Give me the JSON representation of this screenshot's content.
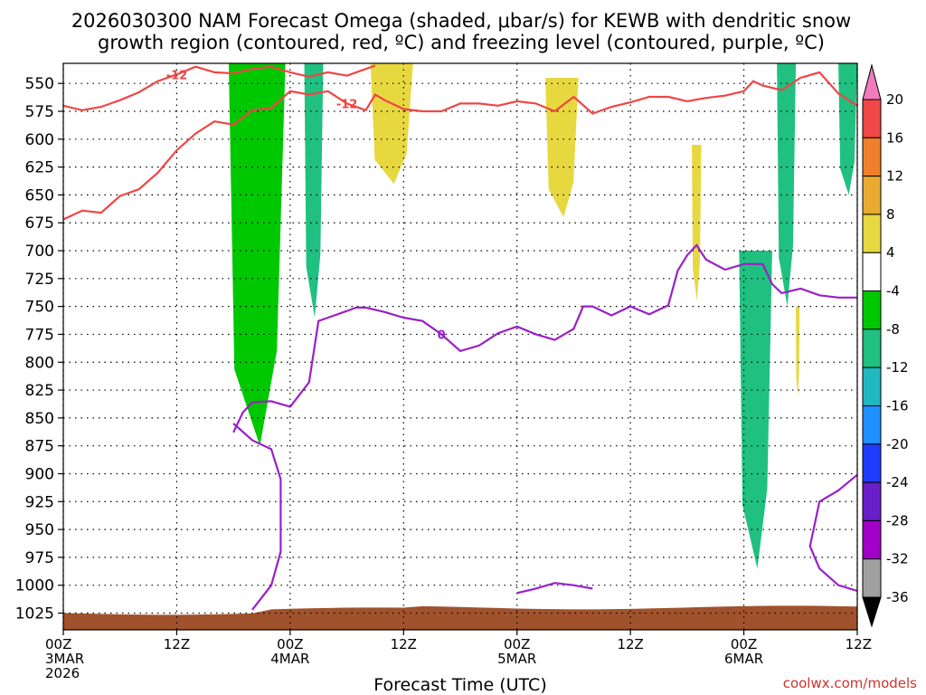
{
  "chart_data": {
    "type": "heatmap",
    "title_line1": "2026030300 NAM Forecast Omega (shaded, μbar/s) for KEWB with dendritic snow",
    "title_line2": "growth region (contoured, red, ºC) and freezing level (contoured, purple, ºC)",
    "xlabel": "Forecast Time (UTC)",
    "ylabel": "",
    "credit": "coolwx.com/models",
    "xlim_hours": [
      0,
      84
    ],
    "ylim_hpa": [
      1040,
      532
    ],
    "y_ticks": [
      550,
      575,
      600,
      625,
      650,
      675,
      700,
      725,
      750,
      775,
      800,
      825,
      850,
      875,
      900,
      925,
      950,
      975,
      1000,
      1025
    ],
    "x_ticks": [
      {
        "hour": 0,
        "line1": "00Z",
        "line2": "3MAR",
        "line3": "2026"
      },
      {
        "hour": 12,
        "line1": "12Z",
        "line2": "",
        "line3": ""
      },
      {
        "hour": 24,
        "line1": "00Z",
        "line2": "4MAR",
        "line3": ""
      },
      {
        "hour": 36,
        "line1": "12Z",
        "line2": "",
        "line3": ""
      },
      {
        "hour": 48,
        "line1": "00Z",
        "line2": "5MAR",
        "line3": ""
      },
      {
        "hour": 60,
        "line1": "12Z",
        "line2": "",
        "line3": ""
      },
      {
        "hour": 72,
        "line1": "00Z",
        "line2": "6MAR",
        "line3": ""
      },
      {
        "hour": 84,
        "line1": "12Z",
        "line2": "",
        "line3": ""
      }
    ],
    "colorbar": {
      "labels": [
        "20",
        "16",
        "12",
        "8",
        "4",
        "-4",
        "-8",
        "-12",
        "-16",
        "-20",
        "-24",
        "-28",
        "-32",
        "-36"
      ],
      "colors": [
        "#f07cbe",
        "#f04747",
        "#ef7f2a",
        "#e8aa30",
        "#e8d840",
        "#ffffff",
        "#00c800",
        "#20c080",
        "#20b8c0",
        "#1e90ff",
        "#1e3cff",
        "#6a1ec8",
        "#a000c8",
        "#a0a0a0"
      ]
    },
    "series": [
      {
        "name": "-12C isotherm (upper)",
        "color": "#f04545",
        "label": "-12",
        "points": [
          [
            0,
            570
          ],
          [
            2,
            574
          ],
          [
            4,
            571
          ],
          [
            6,
            565
          ],
          [
            8,
            558
          ],
          [
            10,
            548
          ],
          [
            12,
            542
          ],
          [
            14,
            535
          ],
          [
            16,
            540
          ],
          [
            18,
            541
          ],
          [
            20,
            537
          ],
          [
            22,
            535
          ],
          [
            24,
            540
          ],
          [
            26,
            544
          ],
          [
            28,
            540
          ],
          [
            30,
            543
          ],
          [
            32,
            537
          ],
          [
            33,
            534
          ]
        ]
      },
      {
        "name": "-12C isotherm (lower)",
        "color": "#f04545",
        "label": "-12",
        "points": [
          [
            0,
            672
          ],
          [
            2,
            664
          ],
          [
            4,
            666
          ],
          [
            6,
            651
          ],
          [
            8,
            645
          ],
          [
            10,
            630
          ],
          [
            12,
            610
          ],
          [
            14,
            595
          ],
          [
            16,
            584
          ],
          [
            18,
            587
          ],
          [
            20,
            574
          ],
          [
            22,
            572
          ],
          [
            24,
            557
          ],
          [
            26,
            560
          ],
          [
            28,
            557
          ],
          [
            30,
            568
          ],
          [
            32,
            574
          ],
          [
            33,
            560
          ],
          [
            34,
            565
          ],
          [
            36,
            573
          ],
          [
            38,
            575
          ],
          [
            40,
            575
          ],
          [
            42,
            568
          ],
          [
            44,
            568
          ],
          [
            46,
            570
          ],
          [
            48,
            566
          ],
          [
            50,
            568
          ],
          [
            52,
            575
          ],
          [
            54,
            562
          ],
          [
            56,
            577
          ],
          [
            58,
            571
          ],
          [
            60,
            567
          ],
          [
            62,
            562
          ],
          [
            64,
            562
          ],
          [
            66,
            566
          ],
          [
            68,
            563
          ],
          [
            70,
            561
          ],
          [
            72,
            557
          ],
          [
            73,
            548
          ],
          [
            74,
            552
          ],
          [
            76,
            556
          ],
          [
            78,
            545
          ],
          [
            80,
            540
          ],
          [
            82,
            559
          ],
          [
            84,
            570
          ]
        ]
      },
      {
        "name": "0C freezing level",
        "color": "#9a20c8",
        "label": "0",
        "points": [
          [
            18,
            863
          ],
          [
            19,
            845
          ],
          [
            20,
            836
          ],
          [
            22,
            835
          ],
          [
            24,
            840
          ],
          [
            26,
            818
          ],
          [
            27,
            763
          ],
          [
            28,
            760
          ],
          [
            30,
            754
          ],
          [
            31,
            751
          ],
          [
            32,
            751
          ],
          [
            34,
            755
          ],
          [
            36,
            760
          ],
          [
            38,
            763
          ],
          [
            40,
            775
          ],
          [
            42,
            790
          ],
          [
            44,
            785
          ],
          [
            46,
            774
          ],
          [
            48,
            768
          ],
          [
            50,
            775
          ],
          [
            52,
            780
          ],
          [
            54,
            770
          ],
          [
            55,
            750
          ],
          [
            56,
            750
          ],
          [
            58,
            758
          ],
          [
            60,
            750
          ],
          [
            62,
            757
          ],
          [
            64,
            749
          ],
          [
            65,
            718
          ],
          [
            66,
            704
          ],
          [
            67,
            695
          ],
          [
            68,
            708
          ],
          [
            70,
            717
          ],
          [
            72,
            712
          ],
          [
            74,
            712
          ],
          [
            75,
            730
          ],
          [
            76,
            738
          ],
          [
            78,
            734
          ],
          [
            80,
            740
          ],
          [
            82,
            742
          ],
          [
            84,
            742
          ]
        ]
      },
      {
        "name": "0C freezing level (lower branch)",
        "color": "#9a20c8",
        "label": "",
        "points": [
          [
            18,
            855
          ],
          [
            20,
            870
          ],
          [
            22,
            878
          ],
          [
            23,
            905
          ],
          [
            23,
            970
          ],
          [
            22,
            1000
          ],
          [
            20,
            1022
          ]
        ]
      },
      {
        "name": "0C freezing level (surface)",
        "color": "#9a20c8",
        "label": "",
        "points": [
          [
            48,
            1007
          ],
          [
            50,
            1003
          ],
          [
            52,
            998
          ],
          [
            54,
            1000
          ],
          [
            56,
            1003
          ]
        ]
      },
      {
        "name": "0C freezing level (east)",
        "color": "#9a20c8",
        "label": "",
        "points": [
          [
            84,
            901
          ],
          [
            82,
            915
          ],
          [
            80,
            925
          ],
          [
            79,
            965
          ],
          [
            80,
            985
          ],
          [
            82,
            1000
          ],
          [
            84,
            1005
          ]
        ]
      }
    ],
    "omega_regions": [
      {
        "name": "ascent-1",
        "value": -6,
        "hours": [
          17.5,
          23.5
        ],
        "top_hpa": 532,
        "bottom_hpa": 875
      },
      {
        "name": "ascent-2",
        "value": -8,
        "hours": [
          25.5,
          27.5
        ],
        "top_hpa": 532,
        "bottom_hpa": 760
      },
      {
        "name": "ascent-3",
        "value": -8,
        "hours": [
          71.5,
          75
        ],
        "top_hpa": 700,
        "bottom_hpa": 985
      },
      {
        "name": "ascent-4",
        "value": -10,
        "hours": [
          75.5,
          77.5
        ],
        "top_hpa": 532,
        "bottom_hpa": 750
      },
      {
        "name": "ascent-5",
        "value": -8,
        "hours": [
          82,
          84
        ],
        "top_hpa": 532,
        "bottom_hpa": 650
      },
      {
        "name": "descent-1",
        "value": 5,
        "hours": [
          32.5,
          37
        ],
        "top_hpa": 532,
        "bottom_hpa": 640
      },
      {
        "name": "descent-2",
        "value": 6,
        "hours": [
          51,
          54.5
        ],
        "top_hpa": 545,
        "bottom_hpa": 670
      },
      {
        "name": "descent-3",
        "value": 5,
        "hours": [
          66.5,
          67.5
        ],
        "top_hpa": 605,
        "bottom_hpa": 745
      },
      {
        "name": "descent-4",
        "value": 5,
        "hours": [
          77.5,
          77.9
        ],
        "top_hpa": 750,
        "bottom_hpa": 830
      }
    ],
    "terrain_hpa_top": 1020
  }
}
